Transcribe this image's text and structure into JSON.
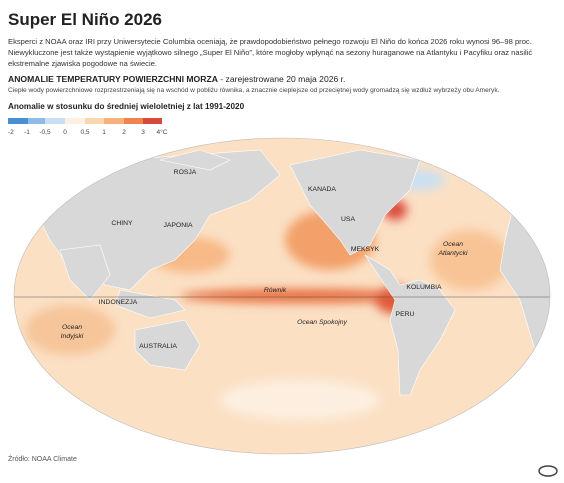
{
  "header": {
    "title": "Super El Niño 2026",
    "intro": [
      "Eksperci z NOAA oraz IRI przy Uniwersytecie Columbia oceniają, że prawdopodobieństwo pełnego rozwoju El Niño do końca 2026 roku wynosi 96–98 proc.",
      "Niewykluczone jest także wystąpienie wyjątkowo silnego „Super El Niño”, które mogłoby wpłynąć na sezony huraganowe na Atlantyku i Pacyfiku oraz nasilić",
      "ekstremalne zjawiska pogodowe na świecie."
    ]
  },
  "section": {
    "heading": "ANOMALIE TEMPERATURY POWIERZCHNI MORZA",
    "date_note": " - zarejestrowane 20 maja 2026 r.",
    "subtitle": "Ciepłe wody powierzchniowe rozprzestrzeniają się na wschód w pobliżu równika, a znacznie cieplejsze od przeciętnej wody gromadzą się wzdłuż wybrzeży obu Ameryk."
  },
  "legend": {
    "title": "Anomalie w stosunku do średniej wieloletniej z lat 1991-2020",
    "labels": [
      "-2",
      "-1",
      "-0,5",
      "0",
      "0,5",
      "1",
      "2",
      "3",
      "4°C"
    ]
  },
  "map": {
    "labels": [
      "ROSJA",
      "CHINY",
      "JAPONIA",
      "KANADA",
      "USA",
      "MEKSYK",
      "Ocean\nAtlantycki",
      "KOLUMBIA",
      "Równik",
      "INDONEZJA",
      "PERU",
      "Ocean Spokojny",
      "Ocean\nIndyjski",
      "AUSTRALIA"
    ]
  },
  "footer": {
    "source": "Źródło: NOAA Climate"
  }
}
